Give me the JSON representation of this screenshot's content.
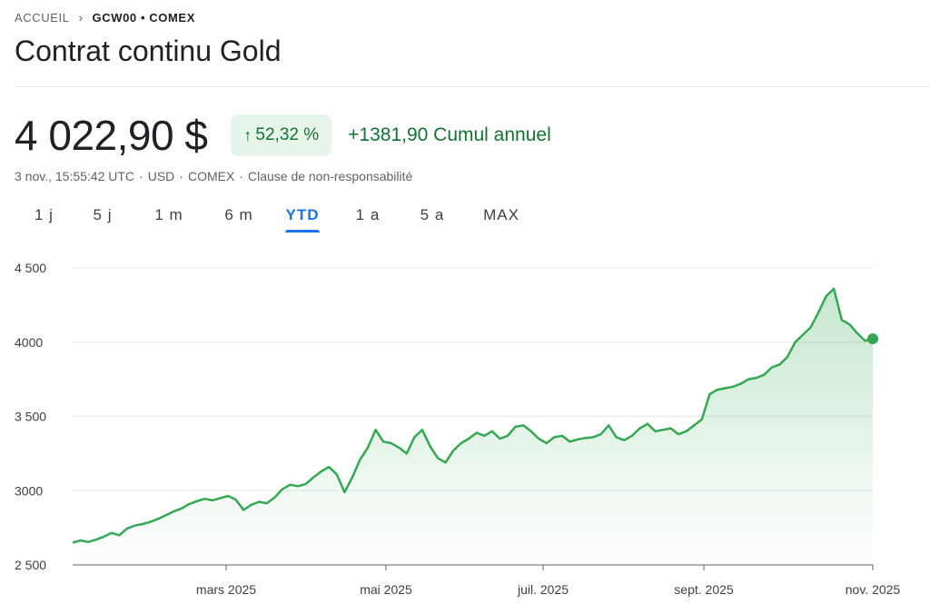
{
  "breadcrumb": {
    "home": "ACCUEIL",
    "ticker": "GCW00 • COMEX"
  },
  "title": "Contrat continu Gold",
  "quote": {
    "price": "4 022,90 $",
    "change_pct": "52,32 %",
    "change_abs": "+1381,90 Cumul annuel",
    "meta": [
      "3 nov., 15:55:42 UTC",
      "USD",
      "COMEX",
      "Clause de non-responsabilité"
    ]
  },
  "tabs": [
    {
      "label": "1 j",
      "active": false
    },
    {
      "label": "5 j",
      "active": false
    },
    {
      "label": "1 m",
      "active": false
    },
    {
      "label": "6 m",
      "active": false
    },
    {
      "label": "YTD",
      "active": true
    },
    {
      "label": "1 a",
      "active": false
    },
    {
      "label": "5 a",
      "active": false
    },
    {
      "label": "MAX",
      "active": false
    }
  ],
  "colors": {
    "up": "#137333",
    "up_bg": "#e6f4ea",
    "line": "#34a853",
    "accent": "#1a73e8"
  },
  "chart_data": {
    "type": "area",
    "x_ticks": [
      "mars 2025",
      "mai 2025",
      "juil. 2025",
      "sept. 2025",
      "nov. 2025"
    ],
    "y_ticks": [
      "4 500",
      "4000",
      "3 500",
      "3000",
      "2 500"
    ],
    "ylim": [
      2500,
      4500
    ],
    "grid": true,
    "series": [
      {
        "values": [
          2650,
          2665,
          2655,
          2670,
          2690,
          2715,
          2700,
          2745,
          2765,
          2775,
          2790,
          2810,
          2835,
          2860,
          2880,
          2910,
          2930,
          2945,
          2935,
          2950,
          2965,
          2940,
          2870,
          2905,
          2925,
          2915,
          2955,
          3010,
          3040,
          3030,
          3045,
          3090,
          3130,
          3160,
          3110,
          2990,
          3090,
          3210,
          3290,
          3410,
          3330,
          3320,
          3290,
          3250,
          3360,
          3410,
          3300,
          3220,
          3190,
          3270,
          3320,
          3350,
          3390,
          3370,
          3400,
          3350,
          3370,
          3430,
          3440,
          3400,
          3350,
          3320,
          3360,
          3370,
          3330,
          3345,
          3355,
          3360,
          3380,
          3440,
          3360,
          3340,
          3370,
          3420,
          3450,
          3400,
          3410,
          3420,
          3380,
          3400,
          3440,
          3480,
          3650,
          3680,
          3690,
          3700,
          3720,
          3750,
          3760,
          3780,
          3830,
          3850,
          3900,
          4000,
          4050,
          4100,
          4200,
          4310,
          4360,
          4150,
          4120,
          4060,
          4010,
          4022.9
        ]
      }
    ]
  }
}
